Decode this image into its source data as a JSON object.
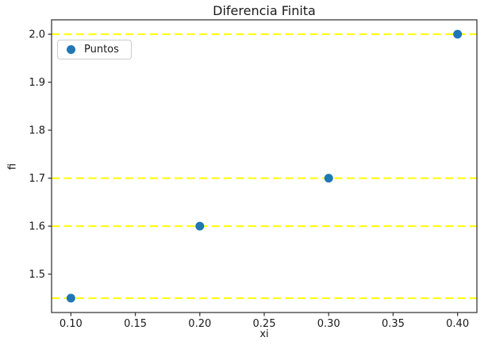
{
  "chart_data": {
    "type": "scatter",
    "title": "Diferencia Finita",
    "xlabel": "xi",
    "ylabel": "fi",
    "series": [
      {
        "name": "Puntos",
        "x": [
          0.1,
          0.2,
          0.3,
          0.4
        ],
        "y": [
          1.45,
          1.6,
          1.7,
          2.0
        ],
        "color": "#1f77b4",
        "marker": "circle"
      }
    ],
    "hlines": {
      "y": [
        1.45,
        1.6,
        1.7,
        2.0
      ],
      "color": "#ffff00",
      "style": "dashed"
    },
    "xlim": [
      0.085,
      0.415
    ],
    "ylim": [
      1.42,
      2.03
    ],
    "xticks": {
      "values": [
        0.1,
        0.15,
        0.2,
        0.25,
        0.3,
        0.35,
        0.4
      ],
      "labels": [
        "0.10",
        "0.15",
        "0.20",
        "0.25",
        "0.30",
        "0.35",
        "0.40"
      ]
    },
    "yticks": {
      "values": [
        1.5,
        1.6,
        1.7,
        1.8,
        1.9,
        2.0
      ],
      "labels": [
        "1.5",
        "1.6",
        "1.7",
        "1.8",
        "1.9",
        "2.0"
      ]
    },
    "legend": {
      "label": "Puntos",
      "position": "upper-left"
    },
    "grid": false,
    "spine_color": "#3b3b3b"
  }
}
